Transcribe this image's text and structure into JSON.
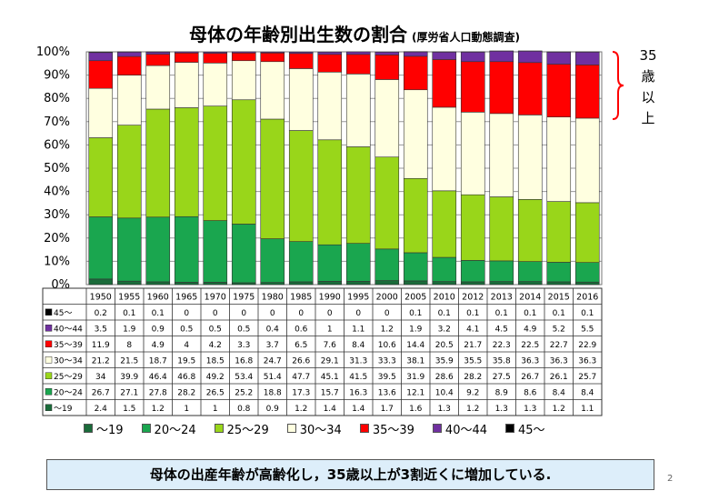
{
  "header": {
    "title": "母体の年齢別出生数の割合",
    "source": "(厚労省人口動態調査)"
  },
  "annotation": {
    "line1": "35",
    "line2": "歳",
    "line3": "以",
    "line4": "上"
  },
  "summary": "母体の出産年齢が高齢化し，35歳以上が3割近くに増加している.",
  "page_number": "2",
  "colors": {
    "~19": "#1a6b3a",
    "20~24": "#1aa64f",
    "25~29": "#99d61a",
    "30~34": "#ffffe0",
    "35~39": "#ff0000",
    "40~44": "#7030a0",
    "45~": "#000000"
  },
  "chart_data": {
    "type": "bar",
    "stacked": true,
    "title": "母体の年齢別出生数の割合",
    "subtitle": "(厚労省人口動態調査)",
    "y_tick_labels": [
      "0%",
      "10%",
      "20%",
      "30%",
      "40%",
      "50%",
      "60%",
      "70%",
      "80%",
      "90%",
      "100%"
    ],
    "ylim": [
      0,
      100
    ],
    "grid": true,
    "legend_position": "bottom",
    "categories": [
      "1950",
      "1955",
      "1960",
      "1965",
      "1970",
      "1975",
      "1980",
      "1985",
      "1990",
      "1995",
      "2000",
      "2005",
      "2010",
      "2012",
      "2013",
      "2014",
      "2015",
      "2016"
    ],
    "series": [
      {
        "name": "~19",
        "legend": "〜19",
        "table_label": "〜19",
        "values": [
          "2.4",
          "1.5",
          "1.2",
          "1",
          "1",
          "0.8",
          "0.9",
          "1.2",
          "1.4",
          "1.4",
          "1.7",
          "1.6",
          "1.3",
          "1.2",
          "1.3",
          "1.3",
          "1.2",
          "1.1"
        ]
      },
      {
        "name": "20~24",
        "legend": "20〜24",
        "table_label": "20〜24",
        "values": [
          "26.7",
          "27.1",
          "27.8",
          "28.2",
          "26.5",
          "25.2",
          "18.8",
          "17.3",
          "15.7",
          "16.3",
          "13.6",
          "12.1",
          "10.4",
          "9.2",
          "8.9",
          "8.6",
          "8.4",
          "8.4"
        ]
      },
      {
        "name": "25~29",
        "legend": "25〜29",
        "table_label": "25〜29",
        "values": [
          "34",
          "39.9",
          "46.4",
          "46.8",
          "49.2",
          "53.4",
          "51.4",
          "47.7",
          "45.1",
          "41.5",
          "39.5",
          "31.9",
          "28.6",
          "28.2",
          "27.5",
          "26.7",
          "26.1",
          "25.7"
        ]
      },
      {
        "name": "30~34",
        "legend": "30〜34",
        "table_label": "30〜34",
        "values": [
          "21.2",
          "21.5",
          "18.7",
          "19.5",
          "18.5",
          "16.8",
          "24.7",
          "26.6",
          "29.1",
          "31.3",
          "33.3",
          "38.1",
          "35.9",
          "35.5",
          "35.8",
          "36.3",
          "36.3",
          "36.3"
        ]
      },
      {
        "name": "35~39",
        "legend": "35〜39",
        "table_label": "35〜39",
        "values": [
          "11.9",
          "8",
          "4.9",
          "4",
          "4.2",
          "3.3",
          "3.7",
          "6.5",
          "7.6",
          "8.4",
          "10.6",
          "14.4",
          "20.5",
          "21.7",
          "22.3",
          "22.5",
          "22.7",
          "22.9"
        ]
      },
      {
        "name": "40~44",
        "legend": "40〜44",
        "table_label": "40〜44",
        "values": [
          "3.5",
          "1.9",
          "0.9",
          "0.5",
          "0.5",
          "0.5",
          "0.4",
          "0.6",
          "1",
          "1.1",
          "1.2",
          "1.9",
          "3.2",
          "4.1",
          "4.5",
          "4.9",
          "5.2",
          "5.5"
        ]
      },
      {
        "name": "45~",
        "legend": "45〜",
        "table_label": "45〜",
        "values": [
          "0.2",
          "0.1",
          "0.1",
          "0",
          "0",
          "0",
          "0",
          "0",
          "0",
          "0",
          "0",
          "0.1",
          "0.1",
          "0.1",
          "0.1",
          "0.1",
          "0.1",
          "0.1"
        ]
      }
    ]
  }
}
